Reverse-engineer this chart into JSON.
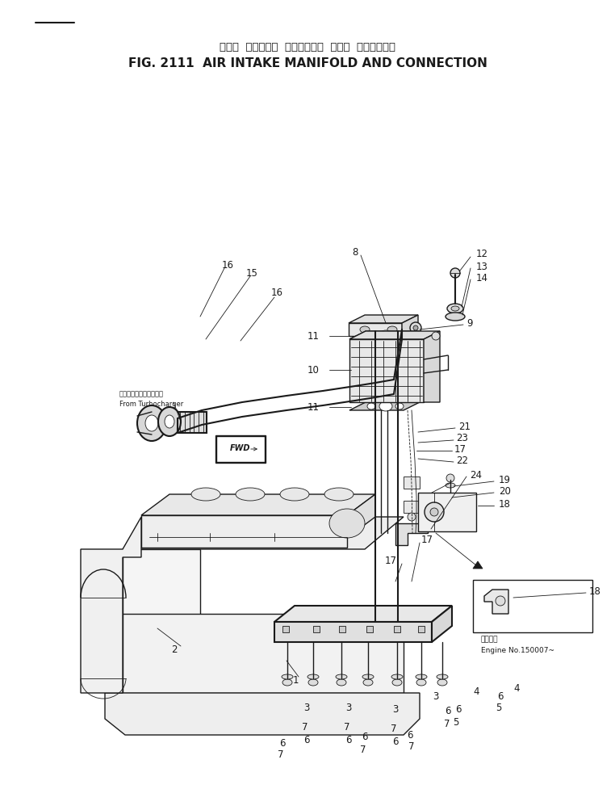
{
  "title_japanese": "エアー  インテーク  マニホールド  および  コネクション",
  "title_english": "FIG. 2111  AIR INTAKE MANIFOLD AND CONNECTION",
  "background_color": "#ffffff",
  "line_color": "#1a1a1a",
  "fig_width": 7.62,
  "fig_height": 9.98,
  "dpi": 100,
  "title_jp_fontsize": 9.5,
  "title_en_fontsize": 11.5,
  "from_turbo_jp": "ターボチャージャーから",
  "from_turbo_en": "From Turbocharger",
  "engine_note_line1": "適用番号",
  "engine_note_line2": "Engine No.150007~"
}
